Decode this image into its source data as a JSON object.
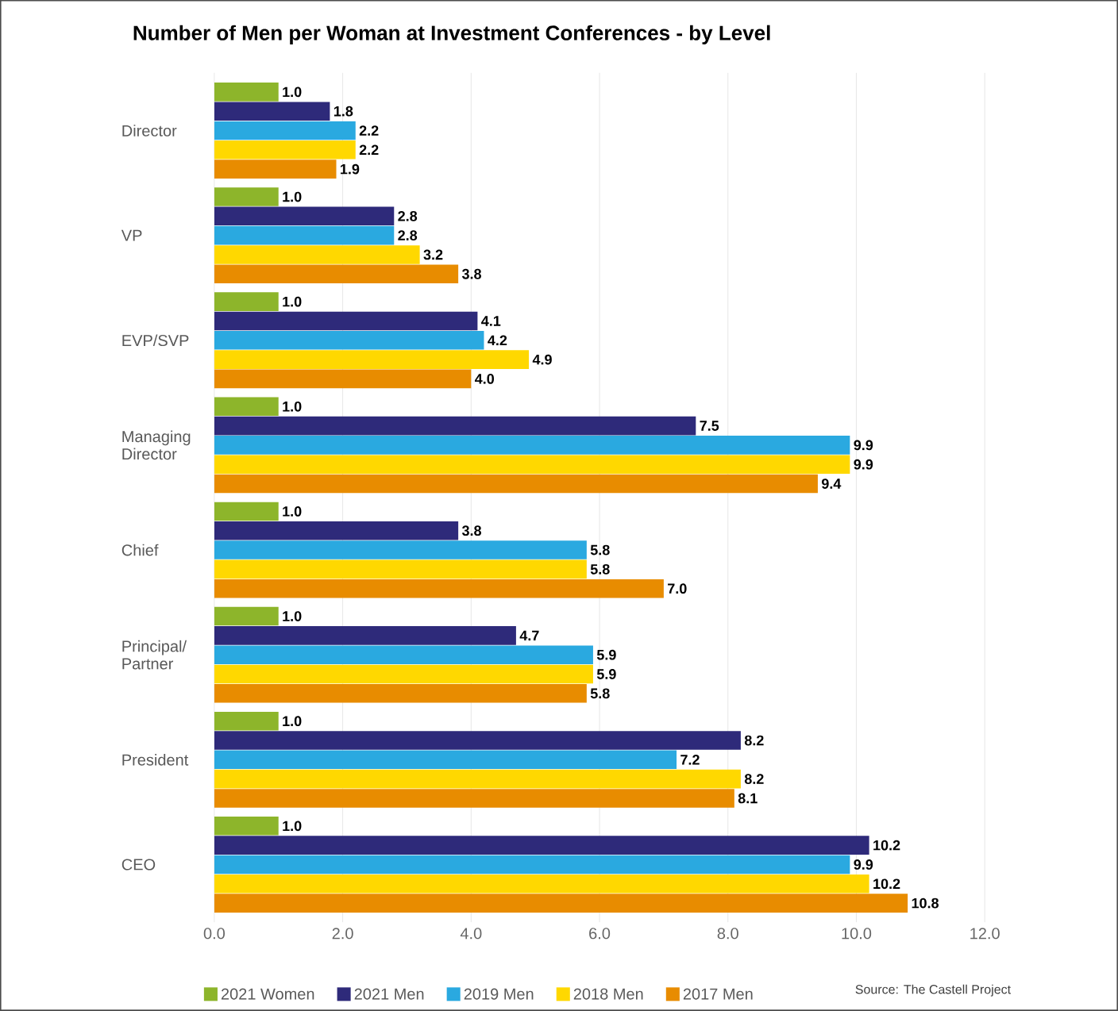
{
  "chart_data": {
    "type": "bar",
    "orientation": "horizontal",
    "title": "Number of Men per Woman at Investment Conferences - by Level",
    "categories": [
      "Director",
      "VP",
      "EVP/SVP",
      "Managing Director",
      "Chief",
      "Principal/ Partner",
      "President",
      "CEO"
    ],
    "series": [
      {
        "name": "2021 Women",
        "color": "#8db52b",
        "values": [
          1.0,
          1.0,
          1.0,
          1.0,
          1.0,
          1.0,
          1.0,
          1.0
        ],
        "value_labels": [
          "1.0",
          "1.0",
          "1.0",
          "1.0",
          "1.0",
          "1.0",
          "1.0",
          "1.0"
        ]
      },
      {
        "name": "2021 Men",
        "color": "#2e2a7a",
        "values": [
          1.8,
          2.8,
          4.1,
          7.5,
          3.8,
          4.7,
          8.2,
          10.2
        ],
        "value_labels": [
          "1.8",
          "2.8",
          "4.1",
          "7.5",
          "3.8",
          "4.7",
          "8.2",
          "10.2"
        ]
      },
      {
        "name": "2019 Men",
        "color": "#2aa9e0",
        "values": [
          2.2,
          2.8,
          4.2,
          9.9,
          5.8,
          5.9,
          7.2,
          9.9
        ],
        "value_labels": [
          "2.2",
          "2.8",
          "4.2",
          "9.9",
          "5.8",
          "5.9",
          "7.2",
          "9.9"
        ]
      },
      {
        "name": "2018 Men",
        "color": "#ffd800",
        "values": [
          2.2,
          3.2,
          4.9,
          9.9,
          5.8,
          5.9,
          8.2,
          10.2
        ],
        "value_labels": [
          "2.2",
          "3.2",
          "4.9",
          "9.9",
          "5.8",
          "5.9",
          "8.2",
          "10.2"
        ]
      },
      {
        "name": "2017 Men",
        "color": "#e88c00",
        "values": [
          1.9,
          3.8,
          4.0,
          9.4,
          7.0,
          5.8,
          8.1,
          10.8
        ],
        "value_labels": [
          "1.9",
          "3.8",
          "4.0",
          "9.4",
          "7.0",
          "5.8",
          "8.1",
          "10.8"
        ]
      }
    ],
    "xlim": [
      0,
      12
    ],
    "xticks": [
      {
        "value": 0,
        "label": "0.0"
      },
      {
        "value": 2,
        "label": "2.0"
      },
      {
        "value": 4,
        "label": "4.0"
      },
      {
        "value": 6,
        "label": "6.0"
      },
      {
        "value": 8,
        "label": "8.0"
      },
      {
        "value": 10,
        "label": "10.0"
      },
      {
        "value": 12,
        "label": "12.0"
      }
    ],
    "grid": "x",
    "legend": "bottom",
    "annotations": [
      "Source: The Castell Project"
    ]
  }
}
